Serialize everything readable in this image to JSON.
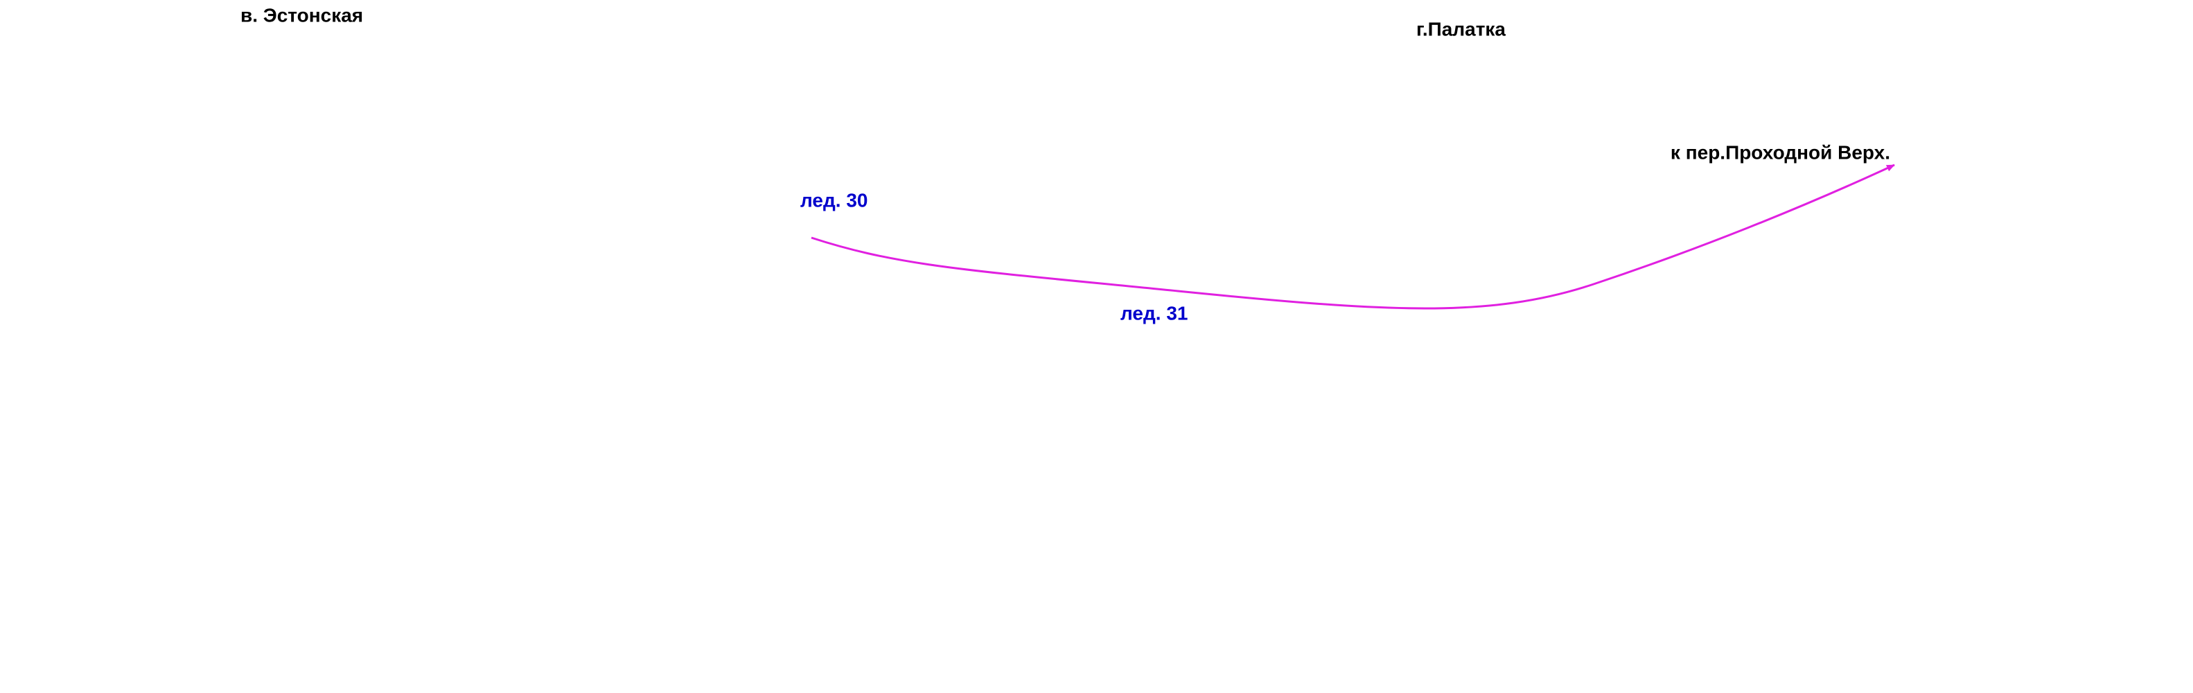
{
  "places": [
    "в. Эстонская",
    "г.Палатка",
    "к пер.Проходной Верх."
  ],
  "route_labels": [
    "лед. 30",
    "лед. 31"
  ]
}
